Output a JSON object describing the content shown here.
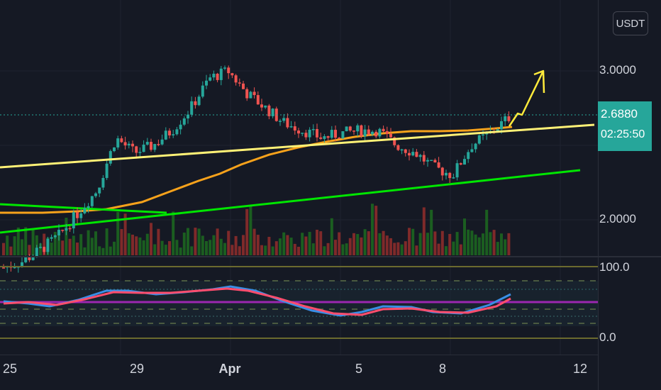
{
  "currency_button": "USDT",
  "last_price": {
    "value": "2.6880",
    "countdown": "02:25:50"
  },
  "price_axis": {
    "labels": [
      "3.0000",
      "2.0000"
    ]
  },
  "indicator_axis": {
    "labels": [
      "100.0",
      "0.0"
    ]
  },
  "date_axis": {
    "labels": [
      "25",
      "29",
      "Apr",
      "5",
      "8",
      "12"
    ]
  },
  "colors": {
    "background": "#151924",
    "up": "#26a69a",
    "down": "#ef5350",
    "volume_up": "#1b5e20",
    "volume_down": "#7f2a2a",
    "trendline_upper": "#fff176",
    "trendline_lower": "#00e600",
    "moving_average": "#f7a21b",
    "stoch_k": "#3a8ee6",
    "stoch_d": "#ff4d6d",
    "annotation_arrow": "#ffeb3b"
  },
  "chart_data": {
    "type": "candlestick",
    "x_labels": [
      "25",
      "29",
      "Apr",
      "5",
      "8",
      "12"
    ],
    "price_axis_labels": [
      3.0,
      2.0
    ],
    "last_price": 2.688,
    "close_path": [
      1.68,
      1.72,
      1.8,
      1.9,
      2.05,
      2.2,
      2.55,
      2.45,
      2.5,
      2.6,
      2.75,
      2.95,
      3.0,
      2.85,
      2.75,
      2.65,
      2.6,
      2.55,
      2.58,
      2.6,
      2.6,
      2.5,
      2.45,
      2.35,
      2.3,
      2.5,
      2.58,
      2.688
    ],
    "stoch_levels": [
      100.0,
      0.0
    ]
  }
}
